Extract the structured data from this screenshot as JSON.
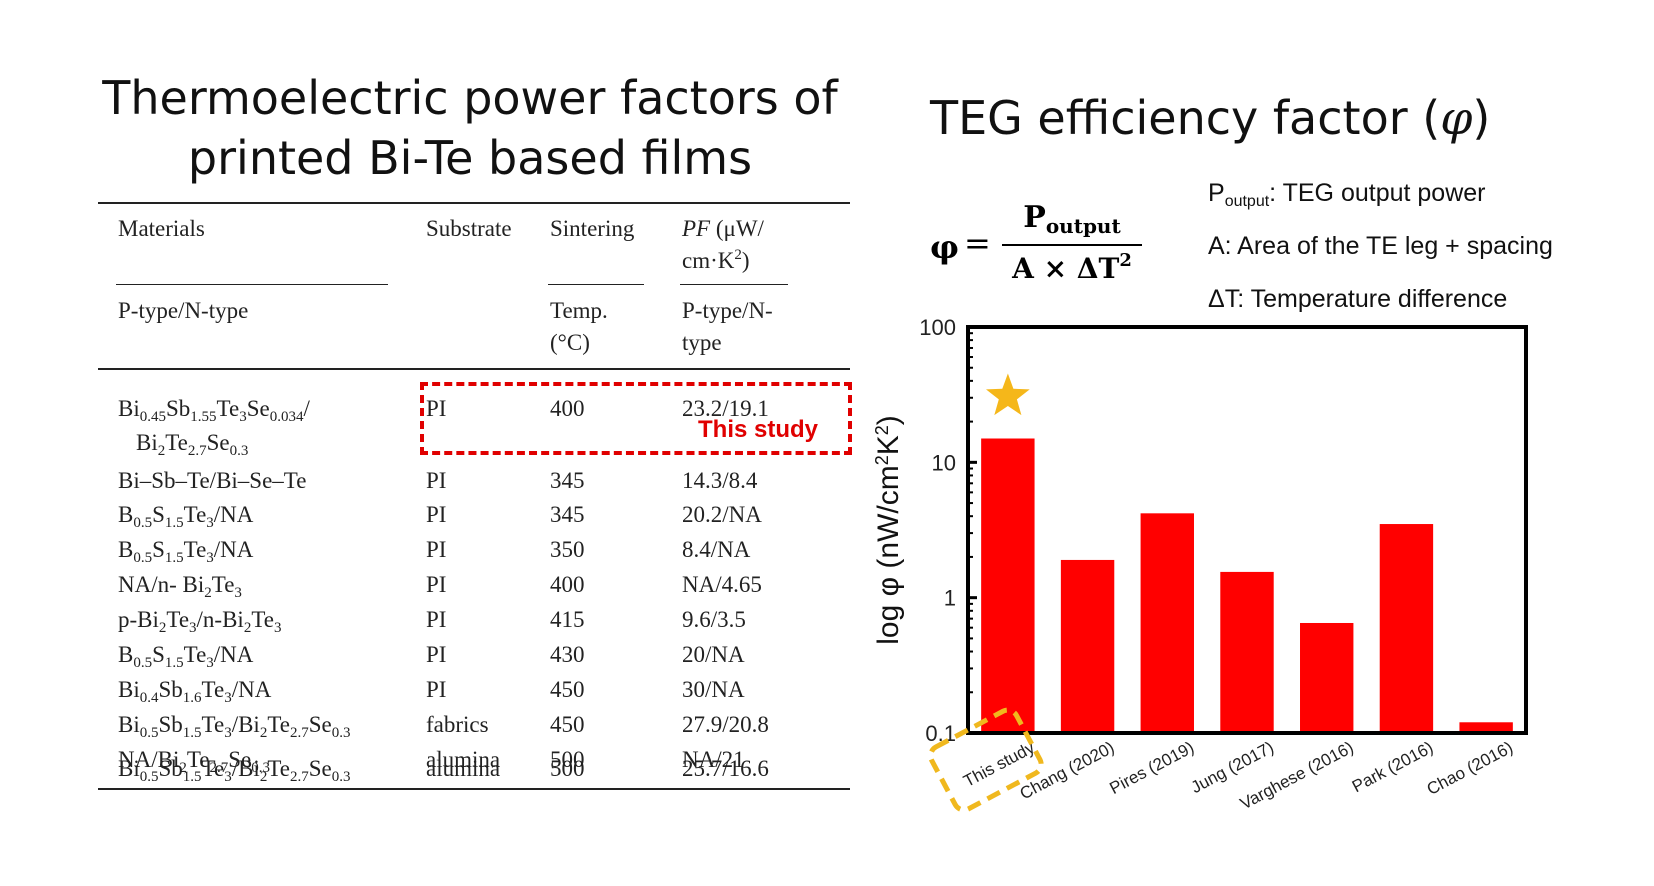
{
  "left_title": [
    "Thermoelectric power factors of",
    "printed Bi-Te based films"
  ],
  "right_title_text": "TEG efficiency factor (",
  "right_title_symbol": "φ",
  "right_title_close": ")",
  "table": {
    "headers": {
      "materials": "Materials",
      "materials_sub": "P-type/N-type",
      "substrate": "Substrate",
      "sintering": "Sintering",
      "sintering_sub": [
        "Temp.",
        "(°C)"
      ],
      "pf_label": "PF",
      "pf_unit": " (μW/",
      "pf_unit2": "cm·K",
      "pf_unit2_sup": "2",
      "pf_unit2_end": ")",
      "pf_sub": [
        "P-type/N-",
        "type"
      ]
    },
    "rows": [
      {
        "materials_parts": [
          [
            "Bi",
            ""
          ],
          [
            "0.45",
            "sub"
          ],
          [
            "Sb",
            ""
          ],
          [
            "1.55",
            "sub"
          ],
          [
            "Te",
            ""
          ],
          [
            "3",
            "sub"
          ],
          [
            "Se",
            ""
          ],
          [
            "0.034",
            "sub"
          ],
          [
            "/",
            ""
          ]
        ],
        "materials_line2_parts": [
          [
            "Bi",
            ""
          ],
          [
            "2",
            "sub"
          ],
          [
            "Te",
            ""
          ],
          [
            "2.7",
            "sub"
          ],
          [
            "Se",
            ""
          ],
          [
            "0.3",
            "sub"
          ]
        ],
        "substrate": "PI",
        "temp": "400",
        "pf": "23.2/19.1"
      },
      {
        "materials_parts": [
          [
            "Bi–Sb–Te/Bi–Se–Te",
            ""
          ]
        ],
        "substrate": "PI",
        "temp": "345",
        "pf": "14.3/8.4"
      },
      {
        "materials_parts": [
          [
            "B",
            ""
          ],
          [
            "0.5",
            "sub"
          ],
          [
            "S",
            ""
          ],
          [
            "1.5",
            "sub"
          ],
          [
            "Te",
            ""
          ],
          [
            "3",
            "sub"
          ],
          [
            "/NA",
            ""
          ]
        ],
        "substrate": "PI",
        "temp": "345",
        "pf": "20.2/NA"
      },
      {
        "materials_parts": [
          [
            "B",
            ""
          ],
          [
            "0.5",
            "sub"
          ],
          [
            "S",
            ""
          ],
          [
            "1.5",
            "sub"
          ],
          [
            "Te",
            ""
          ],
          [
            "3",
            "sub"
          ],
          [
            "/NA",
            ""
          ]
        ],
        "substrate": "PI",
        "temp": "350",
        "pf": "8.4/NA"
      },
      {
        "materials_parts": [
          [
            "NA/n- Bi",
            ""
          ],
          [
            "2",
            "sub"
          ],
          [
            "Te",
            ""
          ],
          [
            "3",
            "sub"
          ]
        ],
        "substrate": "PI",
        "temp": "400",
        "pf": "NA/4.65"
      },
      {
        "materials_parts": [
          [
            "p-Bi",
            ""
          ],
          [
            "2",
            "sub"
          ],
          [
            "Te",
            ""
          ],
          [
            "3",
            "sub"
          ],
          [
            "/n-Bi",
            ""
          ],
          [
            "2",
            "sub"
          ],
          [
            "Te",
            ""
          ],
          [
            "3",
            "sub"
          ]
        ],
        "substrate": "PI",
        "temp": "415",
        "pf": "9.6/3.5"
      },
      {
        "materials_parts": [
          [
            "B",
            ""
          ],
          [
            "0.5",
            "sub"
          ],
          [
            "S",
            ""
          ],
          [
            "1.5",
            "sub"
          ],
          [
            "Te",
            ""
          ],
          [
            "3",
            "sub"
          ],
          [
            "/NA",
            ""
          ]
        ],
        "substrate": "PI",
        "temp": "430",
        "pf": "20/NA"
      },
      {
        "materials_parts": [
          [
            "Bi",
            ""
          ],
          [
            "0.4",
            "sub"
          ],
          [
            "Sb",
            ""
          ],
          [
            "1.6",
            "sub"
          ],
          [
            "Te",
            ""
          ],
          [
            "3",
            "sub"
          ],
          [
            "/NA",
            ""
          ]
        ],
        "substrate": "PI",
        "temp": "450",
        "pf": "30/NA"
      },
      {
        "materials_parts": [
          [
            "Bi",
            ""
          ],
          [
            "0.5",
            "sub"
          ],
          [
            "Sb",
            ""
          ],
          [
            "1.5",
            "sub"
          ],
          [
            "Te",
            ""
          ],
          [
            "3",
            "sub"
          ],
          [
            "/Bi",
            ""
          ],
          [
            "2",
            "sub"
          ],
          [
            "Te",
            ""
          ],
          [
            "2.7",
            "sub"
          ],
          [
            "Se",
            ""
          ],
          [
            "0.3",
            "sub"
          ]
        ],
        "substrate": "fabrics",
        "temp": "450",
        "pf": "27.9/20.8"
      },
      {
        "materials_parts": [
          [
            "NA/Bi",
            ""
          ],
          [
            "2",
            "sub"
          ],
          [
            "Te",
            ""
          ],
          [
            "2.7",
            "sub"
          ],
          [
            "Se",
            ""
          ],
          [
            "0.3",
            "sub"
          ]
        ],
        "substrate": "alumina",
        "temp": "500",
        "pf": "NA/21"
      },
      {
        "materials_parts": [
          [
            "Bi",
            ""
          ],
          [
            "0.5",
            "sub"
          ],
          [
            "Sb",
            ""
          ],
          [
            "1.5",
            "sub"
          ],
          [
            "Te",
            ""
          ],
          [
            "3",
            "sub"
          ],
          [
            "/Bi",
            ""
          ],
          [
            "2",
            "sub"
          ],
          [
            "Te",
            ""
          ],
          [
            "2.7",
            "sub"
          ],
          [
            "Se",
            ""
          ],
          [
            "0.3",
            "sub"
          ]
        ],
        "substrate": "alumina",
        "temp": "500",
        "pf": "25.7/16.6"
      }
    ],
    "highlight_label": "This study",
    "highlight_color": "#e00000"
  },
  "formula": {
    "lhs": "φ",
    "eq": "=",
    "numerator": "P",
    "numerator_sub": "output",
    "denominator": "A × ΔT",
    "denominator_sup": "2"
  },
  "definitions": [
    {
      "main": "P",
      "sub": "output",
      "rest": ": TEG output power"
    },
    {
      "main": "A: Area of the TE leg + spacing",
      "sub": "",
      "rest": ""
    },
    {
      "main": "ΔT: Temperature difference",
      "sub": "",
      "rest": ""
    }
  ],
  "chart_data": {
    "type": "bar",
    "ylabel": "log φ (nW/cm²K²)",
    "ylabel_parts": [
      "log φ (nW/cm",
      "2",
      "K",
      "2",
      ")"
    ],
    "yscale": "log",
    "ylim": [
      0.1,
      100
    ],
    "yticks": [
      0.1,
      1,
      10,
      100
    ],
    "ytick_labels": [
      "0.1",
      "1",
      "10",
      "100"
    ],
    "categories": [
      "This study",
      "Chang (2020)",
      "Pires (2019)",
      "Jung (2017)",
      "Varghese (2016)",
      "Park (2016)",
      "Chao (2016)"
    ],
    "values": [
      15,
      1.9,
      4.2,
      1.55,
      0.65,
      3.5,
      0.12
    ],
    "bar_color": "#ff0000",
    "star_color": "#f5b71a",
    "highlight_category": "This study",
    "highlight_color": "#f0b81e"
  }
}
